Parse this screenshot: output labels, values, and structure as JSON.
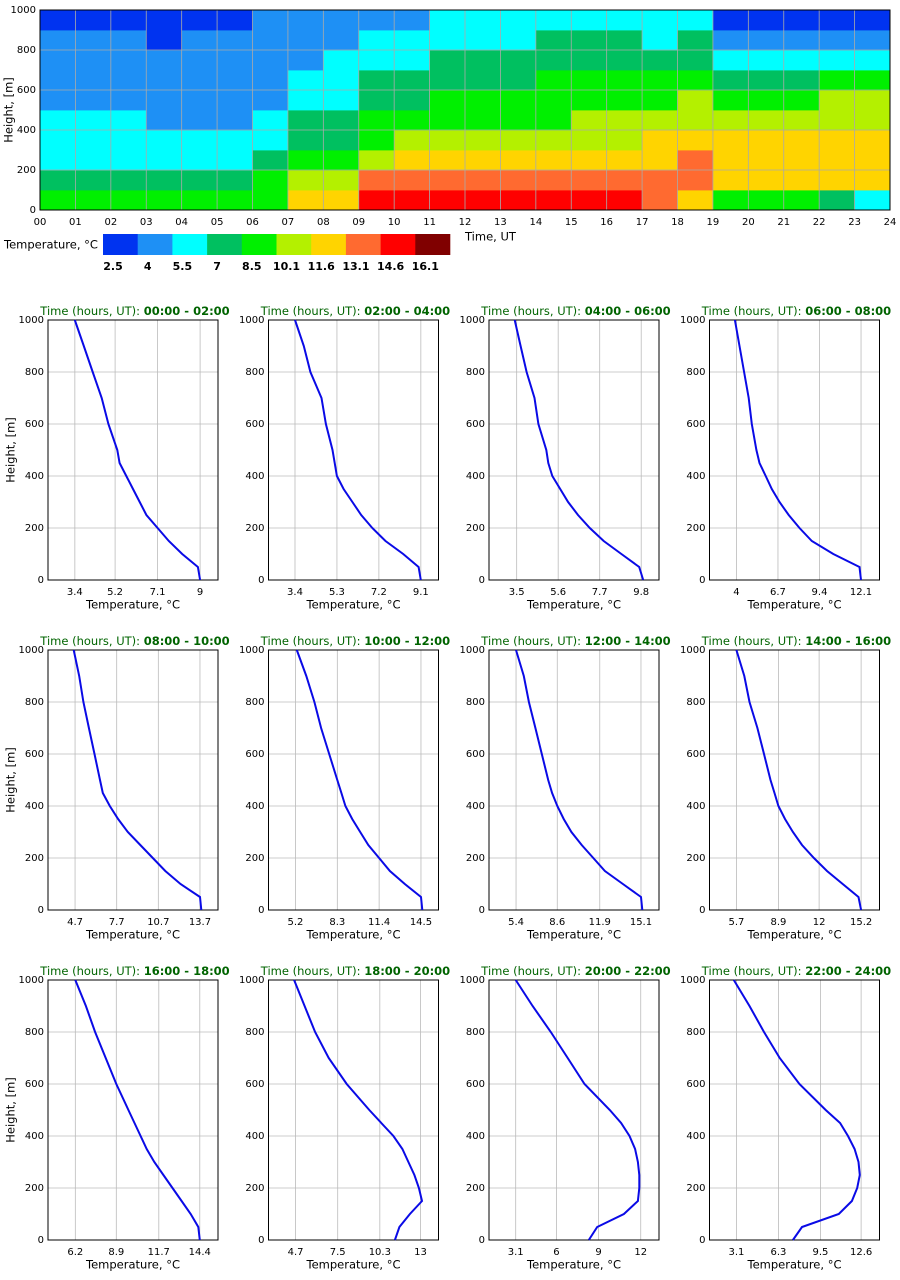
{
  "chart_data": [
    {
      "type": "heatmap",
      "x_label": "Time, UT",
      "y_label": "Height, [m]",
      "xlim": [
        0,
        24
      ],
      "ylim": [
        0,
        1000
      ],
      "xticks": [
        {
          "value": 0,
          "label": "00"
        },
        {
          "value": 1,
          "label": "01"
        },
        {
          "value": 2,
          "label": "02"
        },
        {
          "value": 3,
          "label": "03"
        },
        {
          "value": 4,
          "label": "04"
        },
        {
          "value": 5,
          "label": "05"
        },
        {
          "value": 6,
          "label": "06"
        },
        {
          "value": 7,
          "label": "07"
        },
        {
          "value": 8,
          "label": "08"
        },
        {
          "value": 9,
          "label": "09"
        },
        10,
        11,
        12,
        13,
        14,
        15,
        16,
        17,
        18,
        19,
        20,
        21,
        22,
        23,
        24
      ],
      "yticks": [
        0,
        200,
        400,
        600,
        800,
        1000
      ],
      "grid": true,
      "x_bins": [
        0,
        1,
        2,
        3,
        4,
        5,
        6,
        7,
        8,
        9,
        10,
        11,
        12,
        13,
        14,
        15,
        16,
        17,
        18,
        19,
        20,
        21,
        22,
        23,
        24
      ],
      "y_bins": [
        0,
        100,
        200,
        300,
        400,
        500,
        600,
        700,
        800,
        900,
        1000
      ],
      "values": [
        [
          9.0,
          9.0,
          8.8,
          8.7,
          8.7,
          9.0,
          9.6,
          11.8,
          12.5,
          14.8,
          15.0,
          15.0,
          15.2,
          15.2,
          15.2,
          15.2,
          15.0,
          13.8,
          12.0,
          9.5,
          8.7,
          8.5,
          8.0,
          6.5
        ],
        [
          8.0,
          7.9,
          7.8,
          7.6,
          7.6,
          7.8,
          8.6,
          10.8,
          11.5,
          13.3,
          13.5,
          13.5,
          13.5,
          13.6,
          13.7,
          13.6,
          13.4,
          13.5,
          13.3,
          12.0,
          12.1,
          12.2,
          12.3,
          12.2
        ],
        [
          6.8,
          6.6,
          6.5,
          6.4,
          6.4,
          6.6,
          7.5,
          8.8,
          9.5,
          11.2,
          11.8,
          12.0,
          12.0,
          12.1,
          12.2,
          12.1,
          12.0,
          12.5,
          13.2,
          12.2,
          12.3,
          12.5,
          12.5,
          12.4
        ],
        [
          6.2,
          6.0,
          5.9,
          5.8,
          5.8,
          5.9,
          6.6,
          7.6,
          8.2,
          9.5,
          10.3,
          10.6,
          10.8,
          11.0,
          11.2,
          11.3,
          11.3,
          11.8,
          12.2,
          11.8,
          12.0,
          12.2,
          12.3,
          12.2
        ],
        [
          5.7,
          5.6,
          5.5,
          5.4,
          5.4,
          5.4,
          5.9,
          7.0,
          7.3,
          8.6,
          9.0,
          9.4,
          9.6,
          9.8,
          10.0,
          10.1,
          10.3,
          10.6,
          11.2,
          10.5,
          10.8,
          11.0,
          11.4,
          11.4
        ],
        [
          5.3,
          5.2,
          5.1,
          5.0,
          5.0,
          5.0,
          5.3,
          6.4,
          6.8,
          7.6,
          8.2,
          8.5,
          8.7,
          8.9,
          9.1,
          9.2,
          9.4,
          9.8,
          10.2,
          9.3,
          9.5,
          10.0,
          10.2,
          10.2
        ],
        [
          4.9,
          4.8,
          4.7,
          4.6,
          4.6,
          4.7,
          5.0,
          5.8,
          6.2,
          7.0,
          7.5,
          7.8,
          8.1,
          8.3,
          8.5,
          8.7,
          8.8,
          8.8,
          9.0,
          8.2,
          8.0,
          8.4,
          8.6,
          8.6
        ],
        [
          4.5,
          4.5,
          4.4,
          4.3,
          4.3,
          4.5,
          4.8,
          5.4,
          5.8,
          6.4,
          6.8,
          7.2,
          7.5,
          7.8,
          8.0,
          8.2,
          8.2,
          8.0,
          8.0,
          6.8,
          6.6,
          6.4,
          6.5,
          6.6
        ],
        [
          4.1,
          4.1,
          4.0,
          3.9,
          4.0,
          4.2,
          4.5,
          5.0,
          5.3,
          5.8,
          6.0,
          6.3,
          6.6,
          6.9,
          7.2,
          7.3,
          7.1,
          6.8,
          7.2,
          5.2,
          4.8,
          4.5,
          4.6,
          4.5
        ],
        [
          3.6,
          3.5,
          3.6,
          3.6,
          3.7,
          3.8,
          4.2,
          4.5,
          4.8,
          5.0,
          5.3,
          5.6,
          5.8,
          5.9,
          6.1,
          6.2,
          6.0,
          6.0,
          6.3,
          3.8,
          3.6,
          3.2,
          3.2,
          3.0
        ]
      ],
      "colorbar": {
        "label": "Temperature, °C",
        "levels": [
          2.5,
          4.0,
          5.5,
          7.0,
          8.5,
          10.1,
          11.6,
          13.1,
          14.6,
          16.1
        ],
        "colors": [
          "#0033f0",
          "#1e90f5",
          "#00ffff",
          "#00c060",
          "#00f000",
          "#b4f000",
          "#ffd400",
          "#ff6a30",
          "#ff0000",
          "#800000"
        ]
      }
    },
    {
      "type": "line",
      "title_prefix": "Time (hours, UT):",
      "period": "00:00 - 02:00",
      "x_label": "Temperature, °C",
      "y_label": "Height, [m]",
      "color": "#0a0ae6",
      "xlim": [
        2.2,
        9.8
      ],
      "xticks": [
        3.4,
        5.2,
        7.1,
        9.0
      ],
      "ylim": [
        0,
        1000
      ],
      "yticks": [
        0,
        200,
        400,
        600,
        800,
        1000
      ],
      "grid": true,
      "y": [
        0,
        50,
        100,
        150,
        200,
        250,
        300,
        350,
        400,
        450,
        500,
        600,
        700,
        800,
        900,
        1000
      ],
      "values": [
        9.0,
        8.9,
        8.2,
        7.6,
        7.1,
        6.6,
        6.3,
        6.0,
        5.7,
        5.4,
        5.3,
        4.9,
        4.6,
        4.2,
        3.8,
        3.4
      ]
    },
    {
      "type": "line",
      "title_prefix": "Time (hours, UT):",
      "period": "02:00 - 04:00",
      "x_label": "Temperature, °C",
      "color": "#0a0ae6",
      "xlim": [
        2.2,
        9.9
      ],
      "xticks": [
        3.4,
        5.3,
        7.2,
        9.1
      ],
      "ylim": [
        0,
        1000
      ],
      "yticks": [
        0,
        200,
        400,
        600,
        800,
        1000
      ],
      "grid": true,
      "y": [
        0,
        50,
        100,
        150,
        200,
        250,
        300,
        350,
        400,
        450,
        500,
        600,
        700,
        800,
        900,
        1000
      ],
      "values": [
        9.1,
        9.0,
        8.3,
        7.5,
        6.9,
        6.4,
        6.0,
        5.6,
        5.3,
        5.2,
        5.1,
        4.8,
        4.6,
        4.1,
        3.8,
        3.4
      ]
    },
    {
      "type": "line",
      "title_prefix": "Time (hours, UT):",
      "period": "04:00 - 06:00",
      "x_label": "Temperature, °C",
      "color": "#0a0ae6",
      "xlim": [
        2.1,
        10.7
      ],
      "xticks": [
        3.5,
        5.6,
        7.7,
        9.8
      ],
      "ylim": [
        0,
        1000
      ],
      "yticks": [
        0,
        200,
        400,
        600,
        800,
        1000
      ],
      "grid": true,
      "y": [
        0,
        50,
        100,
        150,
        200,
        250,
        300,
        350,
        400,
        450,
        500,
        600,
        700,
        800,
        900,
        1000
      ],
      "values": [
        9.9,
        9.7,
        8.8,
        7.9,
        7.2,
        6.6,
        6.1,
        5.7,
        5.3,
        5.1,
        5.0,
        4.6,
        4.4,
        4.0,
        3.7,
        3.4
      ]
    },
    {
      "type": "line",
      "title_prefix": "Time (hours, UT):",
      "period": "06:00 - 08:00",
      "x_label": "Temperature, °C",
      "color": "#0a0ae6",
      "xlim": [
        2.25,
        13.3
      ],
      "xticks": [
        4.0,
        6.7,
        9.4,
        12.1
      ],
      "ylim": [
        0,
        1000
      ],
      "yticks": [
        0,
        200,
        400,
        600,
        800,
        1000
      ],
      "grid": true,
      "y": [
        0,
        50,
        100,
        150,
        200,
        250,
        300,
        350,
        400,
        450,
        500,
        600,
        700,
        800,
        900,
        1000
      ],
      "values": [
        12.1,
        12.0,
        10.3,
        8.9,
        8.1,
        7.4,
        6.8,
        6.3,
        5.9,
        5.5,
        5.3,
        5.0,
        4.8,
        4.5,
        4.2,
        3.9
      ]
    },
    {
      "type": "line",
      "title_prefix": "Time (hours, UT):",
      "period": "08:00 - 10:00",
      "x_label": "Temperature, °C",
      "y_label": "Height, [m]",
      "color": "#0a0ae6",
      "xlim": [
        2.75,
        15.0
      ],
      "xticks": [
        4.7,
        7.7,
        10.7,
        13.7
      ],
      "ylim": [
        0,
        1000
      ],
      "yticks": [
        0,
        200,
        400,
        600,
        800,
        1000
      ],
      "grid": true,
      "y": [
        0,
        50,
        100,
        150,
        200,
        250,
        300,
        350,
        400,
        450,
        500,
        600,
        700,
        800,
        900,
        1000
      ],
      "values": [
        13.8,
        13.7,
        12.3,
        11.2,
        10.3,
        9.4,
        8.5,
        7.8,
        7.2,
        6.7,
        6.5,
        6.1,
        5.7,
        5.3,
        5.0,
        4.6
      ]
    },
    {
      "type": "line",
      "title_prefix": "Time (hours, UT):",
      "period": "10:00 - 12:00",
      "x_label": "Temperature, °C",
      "color": "#0a0ae6",
      "xlim": [
        3.2,
        15.8
      ],
      "xticks": [
        5.2,
        8.3,
        11.4,
        14.5
      ],
      "ylim": [
        0,
        1000
      ],
      "yticks": [
        0,
        200,
        400,
        600,
        800,
        1000
      ],
      "grid": true,
      "y": [
        0,
        50,
        100,
        150,
        200,
        250,
        300,
        350,
        400,
        450,
        500,
        600,
        700,
        800,
        900,
        1000
      ],
      "values": [
        14.6,
        14.5,
        13.3,
        12.2,
        11.4,
        10.6,
        10.0,
        9.4,
        8.9,
        8.6,
        8.3,
        7.7,
        7.1,
        6.6,
        6.0,
        5.3
      ]
    },
    {
      "type": "line",
      "title_prefix": "Time (hours, UT):",
      "period": "12:00 - 14:00",
      "x_label": "Temperature, °C",
      "color": "#0a0ae6",
      "xlim": [
        3.3,
        16.5
      ],
      "xticks": [
        5.4,
        8.6,
        11.9,
        15.1
      ],
      "ylim": [
        0,
        1000
      ],
      "yticks": [
        0,
        200,
        400,
        600,
        800,
        1000
      ],
      "grid": true,
      "y": [
        0,
        50,
        100,
        150,
        200,
        250,
        300,
        350,
        400,
        450,
        500,
        600,
        700,
        800,
        900,
        1000
      ],
      "values": [
        15.2,
        15.1,
        13.7,
        12.3,
        11.4,
        10.5,
        9.7,
        9.1,
        8.6,
        8.2,
        7.9,
        7.4,
        6.9,
        6.4,
        6.0,
        5.4
      ]
    },
    {
      "type": "line",
      "title_prefix": "Time (hours, UT):",
      "period": "14:00 - 16:00",
      "x_label": "Temperature, °C",
      "color": "#0a0ae6",
      "xlim": [
        3.65,
        16.6
      ],
      "xticks": [
        5.7,
        8.9,
        12.0,
        15.2
      ],
      "ylim": [
        0,
        1000
      ],
      "yticks": [
        0,
        200,
        400,
        600,
        800,
        1000
      ],
      "grid": true,
      "y": [
        0,
        50,
        100,
        150,
        200,
        250,
        300,
        350,
        400,
        450,
        500,
        600,
        700,
        800,
        900,
        1000
      ],
      "values": [
        15.2,
        15.0,
        13.8,
        12.6,
        11.6,
        10.7,
        10.0,
        9.4,
        8.9,
        8.6,
        8.3,
        7.8,
        7.3,
        6.7,
        6.3,
        5.7
      ]
    },
    {
      "type": "line",
      "title_prefix": "Time (hours, UT):",
      "period": "16:00 - 18:00",
      "x_label": "Temperature, °C",
      "y_label": "Height, [m]",
      "color": "#0a0ae6",
      "xlim": [
        4.4,
        15.6
      ],
      "xticks": [
        6.2,
        8.9,
        11.7,
        14.4
      ],
      "ylim": [
        0,
        1000
      ],
      "yticks": [
        0,
        200,
        400,
        600,
        800,
        1000
      ],
      "grid": true,
      "y": [
        0,
        50,
        100,
        150,
        200,
        250,
        300,
        350,
        400,
        450,
        500,
        600,
        700,
        800,
        900,
        1000
      ],
      "values": [
        14.4,
        14.3,
        13.8,
        13.2,
        12.6,
        12.0,
        11.4,
        10.9,
        10.5,
        10.1,
        9.7,
        8.9,
        8.2,
        7.5,
        6.9,
        6.2
      ]
    },
    {
      "type": "line",
      "title_prefix": "Time (hours, UT):",
      "period": "18:00 - 20:00",
      "x_label": "Temperature, °C",
      "color": "#0a0ae6",
      "xlim": [
        2.9,
        14.2
      ],
      "xticks": [
        4.7,
        7.5,
        10.3,
        13.0
      ],
      "ylim": [
        0,
        1000
      ],
      "yticks": [
        0,
        200,
        400,
        600,
        800,
        1000
      ],
      "grid": true,
      "y": [
        0,
        50,
        100,
        150,
        200,
        250,
        300,
        350,
        400,
        450,
        500,
        600,
        700,
        800,
        900,
        1000
      ],
      "values": [
        11.3,
        11.6,
        12.3,
        13.1,
        12.9,
        12.6,
        12.2,
        11.8,
        11.2,
        10.4,
        9.6,
        8.1,
        6.9,
        6.0,
        5.3,
        4.6
      ]
    },
    {
      "type": "line",
      "title_prefix": "Time (hours, UT):",
      "period": "20:00 - 22:00",
      "x_label": "Temperature, °C",
      "color": "#0a0ae6",
      "xlim": [
        1.2,
        13.3
      ],
      "xticks": [
        3.1,
        6.0,
        9.0,
        12.0
      ],
      "ylim": [
        0,
        1000
      ],
      "yticks": [
        0,
        200,
        400,
        600,
        800,
        1000
      ],
      "grid": true,
      "y": [
        0,
        50,
        100,
        150,
        200,
        250,
        300,
        350,
        400,
        450,
        500,
        600,
        700,
        800,
        900,
        1000
      ],
      "values": [
        8.3,
        8.9,
        10.8,
        11.8,
        11.9,
        11.9,
        11.8,
        11.6,
        11.2,
        10.6,
        9.8,
        8.0,
        6.8,
        5.6,
        4.3,
        3.1
      ]
    },
    {
      "type": "line",
      "title_prefix": "Time (hours, UT):",
      "period": "22:00 - 24:00",
      "x_label": "Temperature, °C",
      "color": "#0a0ae6",
      "xlim": [
        1.05,
        14.0
      ],
      "xticks": [
        3.1,
        6.3,
        9.5,
        12.6
      ],
      "ylim": [
        0,
        1000
      ],
      "yticks": [
        0,
        200,
        400,
        600,
        800,
        1000
      ],
      "grid": true,
      "y": [
        0,
        50,
        100,
        150,
        200,
        250,
        300,
        350,
        400,
        450,
        500,
        600,
        700,
        800,
        900,
        1000
      ],
      "values": [
        7.4,
        8.1,
        10.9,
        11.9,
        12.3,
        12.5,
        12.4,
        12.1,
        11.6,
        11.0,
        9.9,
        7.9,
        6.4,
        5.2,
        4.1,
        2.9
      ]
    }
  ]
}
